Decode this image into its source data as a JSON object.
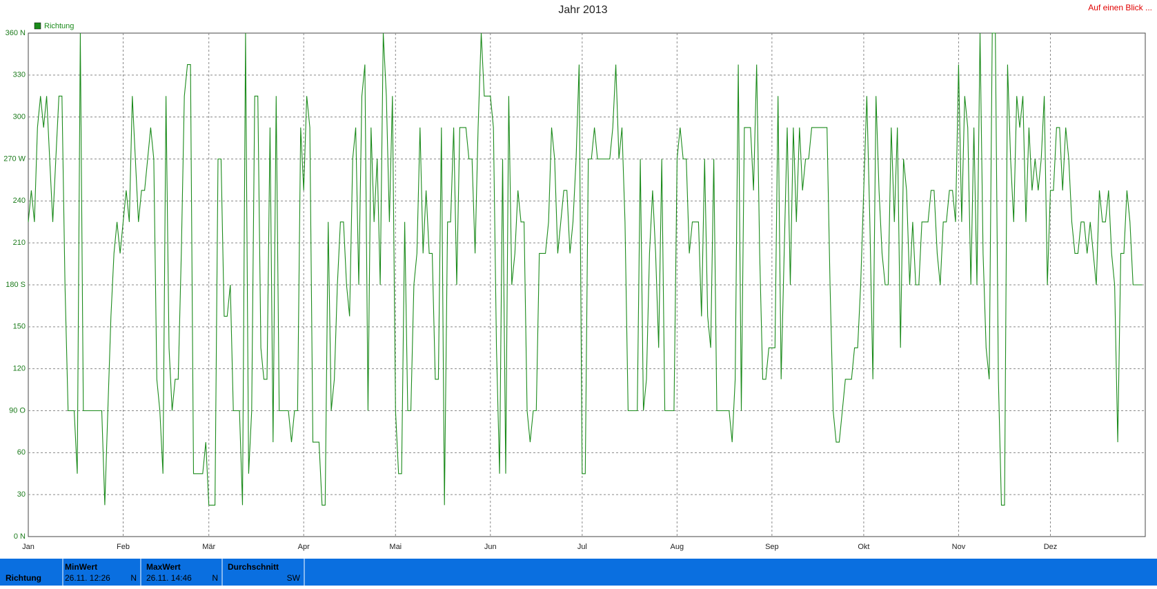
{
  "chart_data": {
    "type": "line",
    "title": "Jahr 2013",
    "series": [
      {
        "name": "Richtung",
        "color": "#1a8a1a",
        "values": [
          225,
          247.5,
          225,
          292.5,
          315,
          292.5,
          315,
          270,
          225,
          270,
          315,
          315,
          180,
          90,
          90,
          90,
          45,
          360,
          90,
          90,
          90,
          90,
          90,
          90,
          90,
          22.5,
          90,
          157.5,
          202.5,
          225,
          202.5,
          225,
          247.5,
          225,
          315,
          270,
          225,
          247.5,
          247.5,
          270,
          292.5,
          270,
          112.5,
          90,
          45,
          315,
          135,
          90,
          112.5,
          112.5,
          202.5,
          315,
          337.5,
          337.5,
          45,
          45,
          45,
          45,
          67.5,
          22.5,
          22.5,
          22.5,
          270,
          270,
          157.5,
          157.5,
          180,
          90,
          90,
          90,
          22.5,
          360,
          45,
          90,
          315,
          315,
          135,
          112.5,
          112.5,
          292.5,
          67.5,
          315,
          90,
          90,
          90,
          90,
          67.5,
          90,
          90,
          292.5,
          247.5,
          315,
          292.5,
          67.5,
          67.5,
          67.5,
          22.5,
          22.5,
          225,
          90,
          112.5,
          180,
          225,
          225,
          180,
          157.5,
          270,
          292.5,
          180,
          315,
          337.5,
          90,
          292.5,
          225,
          270,
          180,
          360,
          315,
          225,
          315,
          90,
          45,
          45,
          225,
          90,
          90,
          180,
          202.5,
          292.5,
          202.5,
          247.5,
          202.5,
          202.5,
          112.5,
          112.5,
          292.5,
          22.5,
          225,
          225,
          292.5,
          180,
          292.5,
          292.5,
          292.5,
          270,
          270,
          202.5,
          292.5,
          360,
          315,
          315,
          315,
          292.5,
          135,
          45,
          270,
          45,
          315,
          180,
          202.5,
          247.5,
          225,
          225,
          90,
          67.5,
          90,
          90,
          202.5,
          202.5,
          202.5,
          225,
          292.5,
          270,
          202.5,
          225,
          247.5,
          247.5,
          202.5,
          225,
          270,
          337.5,
          45,
          45,
          270,
          270,
          292.5,
          270,
          270,
          270,
          270,
          270,
          292.5,
          337.5,
          270,
          292.5,
          225,
          90,
          90,
          90,
          90,
          270,
          90,
          112.5,
          202.5,
          247.5,
          202.5,
          135,
          270,
          90,
          90,
          90,
          90,
          270,
          292.5,
          270,
          270,
          202.5,
          225,
          225,
          225,
          157.5,
          270,
          157.5,
          135,
          270,
          90,
          90,
          90,
          90,
          90,
          67.5,
          112.5,
          337.5,
          90,
          292.5,
          292.5,
          292.5,
          247.5,
          337.5,
          202.5,
          112.5,
          112.5,
          135,
          135,
          135,
          315,
          112.5,
          202.5,
          292.5,
          180,
          292.5,
          225,
          292.5,
          247.5,
          270,
          270,
          292.5,
          292.5,
          292.5,
          292.5,
          292.5,
          292.5,
          180,
          90,
          67.5,
          67.5,
          90,
          112.5,
          112.5,
          112.5,
          135,
          135,
          180,
          247.5,
          315,
          225,
          112.5,
          315,
          247.5,
          202.5,
          180,
          180,
          292.5,
          225,
          292.5,
          135,
          270,
          247.5,
          180,
          225,
          180,
          180,
          225,
          225,
          225,
          247.5,
          247.5,
          202.5,
          180,
          225,
          225,
          247.5,
          247.5,
          225,
          337.5,
          225,
          315,
          292.5,
          180,
          292.5,
          180,
          360,
          202.5,
          135,
          112.5,
          360,
          360,
          112.5,
          22.5,
          22.5,
          337.5,
          270,
          225,
          315,
          292.5,
          315,
          225,
          292.5,
          247.5,
          270,
          247.5,
          270,
          315,
          180,
          247.5,
          247.5,
          292.5,
          292.5,
          247.5,
          292.5,
          270,
          225,
          202.5,
          202.5,
          225,
          225,
          202.5,
          225,
          202.5,
          180,
          247.5,
          225,
          225,
          247.5,
          202.5,
          180,
          67.5,
          202.5,
          202.5,
          247.5,
          225,
          180,
          180,
          180,
          180
        ]
      }
    ],
    "xlim": [
      0,
      365
    ],
    "xticks": [
      {
        "value": 0,
        "label": "Jan"
      },
      {
        "value": 31,
        "label": "Feb"
      },
      {
        "value": 59,
        "label": "Mär"
      },
      {
        "value": 90,
        "label": "Apr"
      },
      {
        "value": 120,
        "label": "Mai"
      },
      {
        "value": 151,
        "label": "Jun"
      },
      {
        "value": 181,
        "label": "Jul"
      },
      {
        "value": 212,
        "label": "Aug"
      },
      {
        "value": 243,
        "label": "Sep"
      },
      {
        "value": 273,
        "label": "Okt"
      },
      {
        "value": 304,
        "label": "Nov"
      },
      {
        "value": 334,
        "label": "Dez"
      }
    ],
    "ylim": [
      0,
      360
    ],
    "yticks": [
      {
        "value": 0,
        "label": "0 N"
      },
      30,
      60,
      {
        "value": 90,
        "label": "90 O"
      },
      120,
      150,
      {
        "value": 180,
        "label": "180 S"
      },
      210,
      240,
      {
        "value": 270,
        "label": "270 W"
      },
      300,
      330,
      {
        "value": 360,
        "label": "360 N"
      }
    ],
    "grid": true
  },
  "link": "Auf einen Blick ...",
  "summary": {
    "row": "Richtung",
    "columns": [
      {
        "header": "MinWert",
        "time": "26.11. 12:26",
        "dir": "N"
      },
      {
        "header": "MaxWert",
        "time": "26.11. 14:46",
        "dir": "N"
      },
      {
        "header": "Durchschnitt",
        "dir": "SW"
      }
    ]
  }
}
